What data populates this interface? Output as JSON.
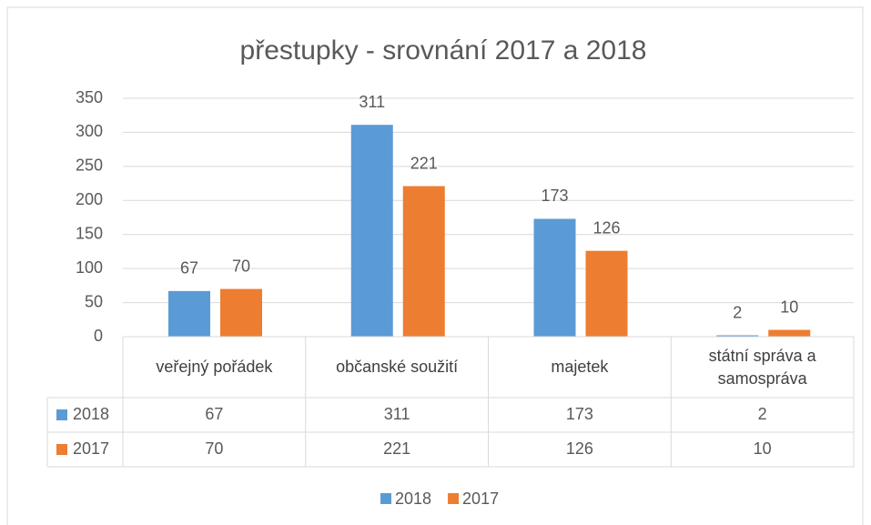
{
  "chart_data": {
    "type": "bar",
    "title": "přestupky - srovnání 2017 a 2018",
    "categories": [
      "veřejný pořádek",
      "občanské soužití",
      "majetek",
      "státní správa a samospráva"
    ],
    "series": [
      {
        "name": "2018",
        "color": "#5b9bd5",
        "values": [
          67,
          311,
          173,
          2
        ]
      },
      {
        "name": "2017",
        "color": "#ed7d31",
        "values": [
          70,
          221,
          126,
          10
        ]
      }
    ],
    "ylim": [
      0,
      350
    ],
    "yticks": [
      0,
      50,
      100,
      150,
      200,
      250,
      300,
      350
    ],
    "grid": true,
    "data_table": true,
    "legend": "bottom"
  }
}
